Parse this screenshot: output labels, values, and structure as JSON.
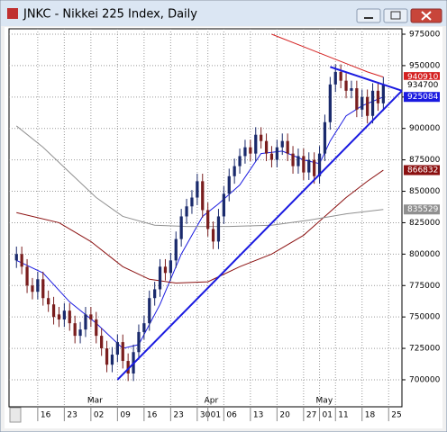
{
  "window": {
    "title": "JNKC - Nikkei 225 Index, Daily"
  },
  "chart_data": {
    "type": "candlestick",
    "up_color": "#1a2a6c",
    "down_color": "#7a1e1e",
    "xlim": [
      -1.4,
      72.5
    ],
    "ylim": [
      678500,
      979300
    ],
    "yticks": [
      700000,
      725000,
      750000,
      775000,
      800000,
      825000,
      850000,
      875000,
      900000,
      925000,
      950000,
      975000
    ],
    "xticks": [
      {
        "value": 4,
        "label": "16"
      },
      {
        "value": 9,
        "label": "23"
      },
      {
        "value": 14,
        "label": "02"
      },
      {
        "value": 19,
        "label": "09"
      },
      {
        "value": 24,
        "label": "16"
      },
      {
        "value": 29,
        "label": "23"
      },
      {
        "value": 34,
        "label": "30"
      },
      {
        "value": 36,
        "label": "01"
      },
      {
        "value": 39,
        "label": "06"
      },
      {
        "value": 44,
        "label": "13"
      },
      {
        "value": 49,
        "label": "20"
      },
      {
        "value": 54,
        "label": "27"
      },
      {
        "value": 57,
        "label": "01"
      },
      {
        "value": 60,
        "label": "11"
      },
      {
        "value": 65,
        "label": "18"
      },
      {
        "value": 70,
        "label": "25"
      }
    ],
    "month_ticks": [
      {
        "value": 14,
        "label": "Mar"
      },
      {
        "value": 36,
        "label": "Apr"
      },
      {
        "value": 57,
        "label": "May"
      }
    ],
    "grid": true,
    "open": [
      795000,
      800000,
      790000,
      775000,
      770000,
      780000,
      765000,
      760000,
      752000,
      748000,
      755000,
      745000,
      735000,
      740000,
      752000,
      748000,
      735000,
      725000,
      712000,
      720000,
      730000,
      715000,
      705000,
      722000,
      738000,
      745000,
      765000,
      772000,
      790000,
      785000,
      795000,
      812000,
      830000,
      838000,
      845000,
      858000,
      835000,
      820000,
      810000,
      830000,
      848000,
      862000,
      870000,
      878000,
      885000,
      880000,
      895000,
      890000,
      880000,
      875000,
      885000,
      890000,
      880000,
      870000,
      878000,
      865000,
      875000,
      862000,
      880000,
      905000,
      935000,
      945000,
      938000,
      930000,
      932000,
      915000,
      925000,
      910000,
      930000,
      920000
    ],
    "high": [
      806000,
      806000,
      796000,
      781000,
      786000,
      786000,
      771000,
      766000,
      758000,
      761000,
      761000,
      751000,
      746000,
      758000,
      758000,
      754000,
      741000,
      731000,
      726000,
      736000,
      736000,
      721000,
      728000,
      744000,
      751000,
      771000,
      778000,
      796000,
      796000,
      801000,
      818000,
      836000,
      844000,
      851000,
      864000,
      864000,
      841000,
      826000,
      836000,
      854000,
      868000,
      876000,
      884000,
      891000,
      891000,
      901000,
      901000,
      896000,
      886000,
      891000,
      896000,
      896000,
      886000,
      884000,
      884000,
      881000,
      881000,
      886000,
      911000,
      941000,
      951000,
      951000,
      944000,
      938000,
      938000,
      931000,
      931000,
      936000,
      936000,
      941000
    ],
    "low": [
      789000,
      784000,
      769000,
      764000,
      764000,
      759000,
      754000,
      744000,
      742000,
      742000,
      739000,
      729000,
      729000,
      734000,
      742000,
      729000,
      719000,
      706000,
      706000,
      714000,
      709000,
      699000,
      699000,
      716000,
      732000,
      739000,
      759000,
      766000,
      779000,
      779000,
      789000,
      806000,
      824000,
      832000,
      839000,
      829000,
      814000,
      804000,
      804000,
      824000,
      842000,
      856000,
      864000,
      872000,
      874000,
      874000,
      884000,
      874000,
      869000,
      869000,
      879000,
      874000,
      864000,
      864000,
      859000,
      859000,
      856000,
      856000,
      874000,
      899000,
      929000,
      932000,
      924000,
      924000,
      909000,
      909000,
      904000,
      904000,
      914000,
      914000
    ],
    "close": [
      800000,
      790000,
      775000,
      770000,
      780000,
      765000,
      760000,
      750000,
      748000,
      755000,
      745000,
      735000,
      740000,
      752000,
      748000,
      735000,
      725000,
      712000,
      720000,
      730000,
      715000,
      705000,
      722000,
      738000,
      745000,
      765000,
      772000,
      790000,
      785000,
      795000,
      812000,
      830000,
      838000,
      845000,
      858000,
      835000,
      820000,
      810000,
      830000,
      848000,
      862000,
      870000,
      878000,
      885000,
      880000,
      895000,
      890000,
      880000,
      875000,
      885000,
      890000,
      880000,
      870000,
      878000,
      865000,
      875000,
      862000,
      880000,
      905000,
      935000,
      945000,
      938000,
      930000,
      932000,
      915000,
      925000,
      910000,
      930000,
      920000,
      934700
    ],
    "close_label_color": "#ffffff",
    "overlays": [
      {
        "color": "#d42020",
        "x": [
          48,
          54,
          60,
          66,
          69
        ],
        "values": [
          975000,
          965000,
          955000,
          945000,
          940910
        ]
      },
      {
        "color": "#1a1ae0",
        "x": [
          0,
          5,
          10,
          15,
          20,
          23,
          27,
          31,
          35,
          38,
          42,
          46,
          50,
          54,
          57,
          59,
          62,
          65,
          69
        ],
        "values": [
          795000,
          785000,
          762000,
          745000,
          725000,
          728000,
          760000,
          800000,
          830000,
          840000,
          855000,
          880000,
          882000,
          875000,
          872000,
          890000,
          910000,
          918000,
          925084
        ]
      },
      {
        "color": "#8b1010",
        "x": [
          0,
          8,
          14,
          20,
          25,
          30,
          36,
          42,
          48,
          54,
          58,
          62,
          66,
          69
        ],
        "values": [
          833000,
          825000,
          810000,
          790000,
          780000,
          777000,
          778000,
          790000,
          800000,
          815000,
          830000,
          845000,
          858000,
          866832
        ]
      },
      {
        "color": "#909090",
        "x": [
          0,
          5,
          10,
          15,
          20,
          26,
          32,
          40,
          48,
          55,
          62,
          69
        ],
        "values": [
          902000,
          885000,
          865000,
          845000,
          830000,
          823000,
          822000,
          822000,
          823000,
          827000,
          832000,
          835529
        ]
      }
    ],
    "trendlines": [
      {
        "color": "#1a1ae0",
        "x": [
          19,
          72.5
        ],
        "values": [
          700000,
          930000
        ]
      },
      {
        "color": "#1a1ae0",
        "x": [
          59,
          72.5
        ],
        "values": [
          949000,
          930000
        ]
      }
    ]
  }
}
